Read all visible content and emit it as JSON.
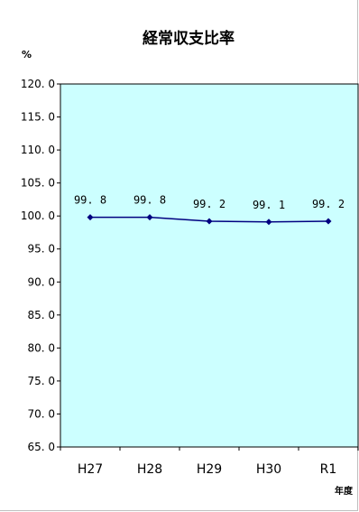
{
  "chart_data": {
    "type": "line",
    "title": "経常収支比率",
    "ylabel": "%",
    "xlabel": "年度",
    "categories": [
      "H27",
      "H28",
      "H29",
      "H30",
      "R1"
    ],
    "values": [
      99.8,
      99.8,
      99.2,
      99.1,
      99.2
    ],
    "data_labels": [
      "99. 8",
      "99. 8",
      "99. 2",
      "99. 1",
      "99. 2"
    ],
    "ylim": [
      65.0,
      120.0
    ],
    "yticks": [
      65.0,
      70.0,
      75.0,
      80.0,
      85.0,
      90.0,
      95.0,
      100.0,
      105.0,
      110.0,
      115.0,
      120.0
    ],
    "ytick_labels": [
      "65. 0",
      "70. 0",
      "75. 0",
      "80. 0",
      "85. 0",
      "90. 0",
      "95. 0",
      "100. 0",
      "105. 0",
      "110. 0",
      "115. 0",
      "120. 0"
    ],
    "grid": false,
    "plot_background": "#ccffff",
    "line_color": "#000080"
  }
}
